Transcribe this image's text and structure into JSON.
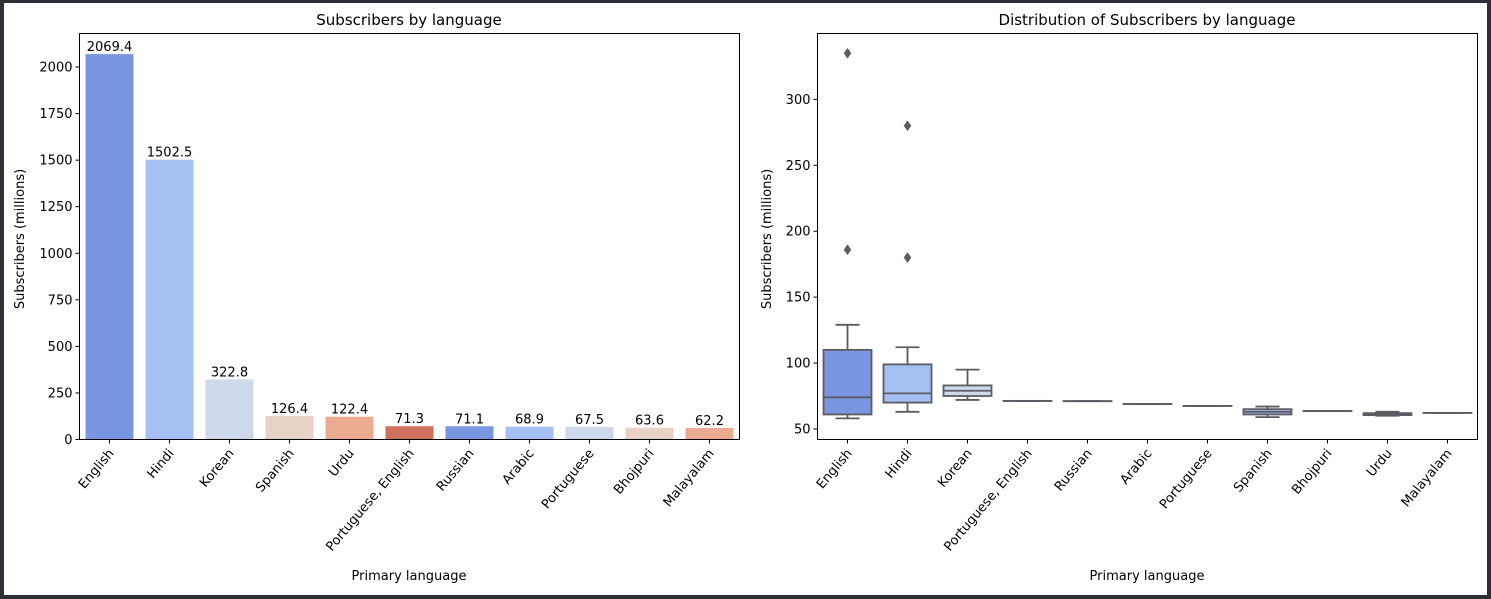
{
  "chart_data": [
    {
      "type": "bar",
      "title": "Subscribers by language",
      "xlabel": "Primary language",
      "ylabel": "Subscribers (millions)",
      "ylim": [
        0,
        2180
      ],
      "yticks": [
        0,
        250,
        500,
        750,
        1000,
        1250,
        1500,
        1750,
        2000
      ],
      "categories": [
        "English",
        "Hindi",
        "Korean",
        "Spanish",
        "Urdu",
        "Portuguese, English",
        "Russian",
        "Arabic",
        "Portuguese",
        "Bhojpuri",
        "Malayalam"
      ],
      "values": [
        2069.4,
        1502.5,
        322.8,
        126.4,
        122.4,
        71.3,
        71.1,
        68.9,
        67.5,
        63.6,
        62.2
      ],
      "value_labels": [
        "2069.4",
        "1502.5",
        "322.8",
        "126.4",
        "122.4",
        "71.3",
        "71.1",
        "68.9",
        "67.5",
        "63.6",
        "62.2"
      ],
      "colors": [
        "#7b96e0",
        "#a6bff3",
        "#cdd9ea",
        "#e8d2c6",
        "#ebab91",
        "#d0715e",
        "#7b96e0",
        "#a6bff3",
        "#cdd9ea",
        "#e8d2c6",
        "#ebab91"
      ],
      "grid": false
    },
    {
      "type": "box",
      "title": "Distribution of Subscribers by language",
      "xlabel": "Primary language",
      "ylabel": "Subscribers (millions)",
      "ylim": [
        42,
        350
      ],
      "yticks": [
        50,
        100,
        150,
        200,
        250,
        300
      ],
      "categories": [
        "English",
        "Hindi",
        "Korean",
        "Portuguese, English",
        "Russian",
        "Arabic",
        "Portuguese",
        "Spanish",
        "Bhojpuri",
        "Urdu",
        "Malayalam"
      ],
      "boxes": [
        {
          "whislo": 58,
          "q1": 61,
          "med": 74,
          "q3": 110,
          "whishi": 129,
          "fliers": [
            186,
            335
          ]
        },
        {
          "whislo": 63,
          "q1": 70,
          "med": 77,
          "q3": 99,
          "whishi": 112,
          "fliers": [
            180,
            280
          ]
        },
        {
          "whislo": 72,
          "q1": 75,
          "med": 79,
          "q3": 83,
          "whishi": 95,
          "fliers": []
        },
        {
          "whislo": 71.3,
          "q1": 71.3,
          "med": 71.3,
          "q3": 71.3,
          "whishi": 71.3,
          "fliers": []
        },
        {
          "whislo": 71.1,
          "q1": 71.1,
          "med": 71.1,
          "q3": 71.1,
          "whishi": 71.1,
          "fliers": []
        },
        {
          "whislo": 68.9,
          "q1": 68.9,
          "med": 68.9,
          "q3": 68.9,
          "whishi": 68.9,
          "fliers": []
        },
        {
          "whislo": 67.5,
          "q1": 67.5,
          "med": 67.5,
          "q3": 67.5,
          "whishi": 67.5,
          "fliers": []
        },
        {
          "whislo": 59,
          "q1": 61,
          "med": 63,
          "q3": 65,
          "whishi": 67,
          "fliers": []
        },
        {
          "whislo": 63.6,
          "q1": 63.6,
          "med": 63.6,
          "q3": 63.6,
          "whishi": 63.6,
          "fliers": []
        },
        {
          "whislo": 60,
          "q1": 60.5,
          "med": 61.2,
          "q3": 62,
          "whishi": 63,
          "fliers": []
        },
        {
          "whislo": 62.2,
          "q1": 62.2,
          "med": 62.2,
          "q3": 62.2,
          "whishi": 62.2,
          "fliers": []
        }
      ],
      "colors": [
        "#7b96e0",
        "#a6bff3",
        "#cdd9ea",
        "#e8d2c6",
        "#ebab91",
        "#d0715e",
        "#7b96e0",
        "#a6bff3",
        "#cdd9ea",
        "#e8d2c6",
        "#ebab91"
      ],
      "grid": false
    }
  ]
}
